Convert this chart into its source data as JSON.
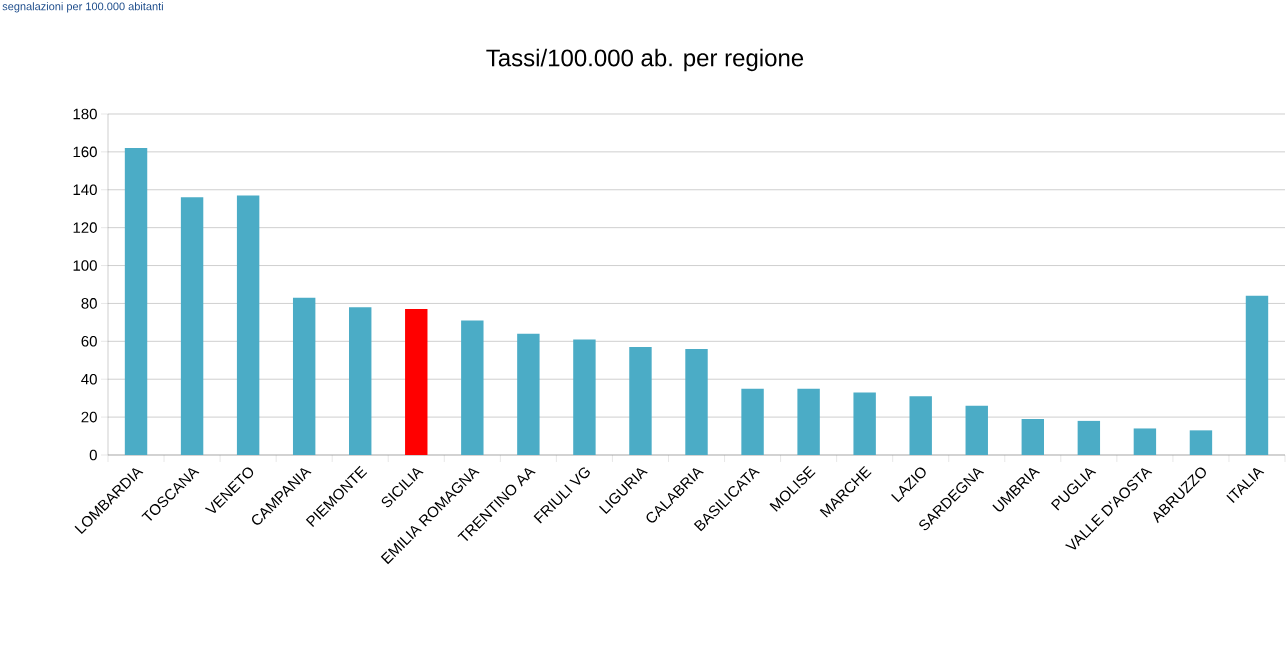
{
  "chart_data": {
    "type": "bar",
    "title": "Tassi/100.000 ab. per regione",
    "annotations": [
      "segnalazioni per 100.000 abitanti"
    ],
    "categories": [
      "LOMBARDIA",
      "TOSCANA",
      "VENETO",
      "CAMPANIA",
      "PIEMONTE",
      "SICILIA",
      "EMILIA ROMAGNA",
      "TRENTINO AA",
      "FRIULI VG",
      "LIGURIA",
      "CALABRIA",
      "BASILICATA",
      "MOLISE",
      "MARCHE",
      "LAZIO",
      "SARDEGNA",
      "UMBRIA",
      "PUGLIA",
      "VALLE D'AOSTA",
      "ABRUZZO",
      "ITALIA"
    ],
    "values": [
      162,
      136,
      137,
      83,
      78,
      77,
      71,
      64,
      61,
      57,
      56,
      35,
      35,
      33,
      31,
      26,
      19,
      18,
      14,
      13,
      84
    ],
    "colors": [
      "#4bacc6",
      "#4bacc6",
      "#4bacc6",
      "#4bacc6",
      "#4bacc6",
      "#ff0000",
      "#4bacc6",
      "#4bacc6",
      "#4bacc6",
      "#4bacc6",
      "#4bacc6",
      "#4bacc6",
      "#4bacc6",
      "#4bacc6",
      "#4bacc6",
      "#4bacc6",
      "#4bacc6",
      "#4bacc6",
      "#4bacc6",
      "#4bacc6",
      "#4bacc6"
    ],
    "ylim": [
      0,
      180
    ],
    "yticks": [
      0,
      20,
      40,
      60,
      80,
      100,
      120,
      140,
      160,
      180
    ],
    "grid": "y"
  }
}
